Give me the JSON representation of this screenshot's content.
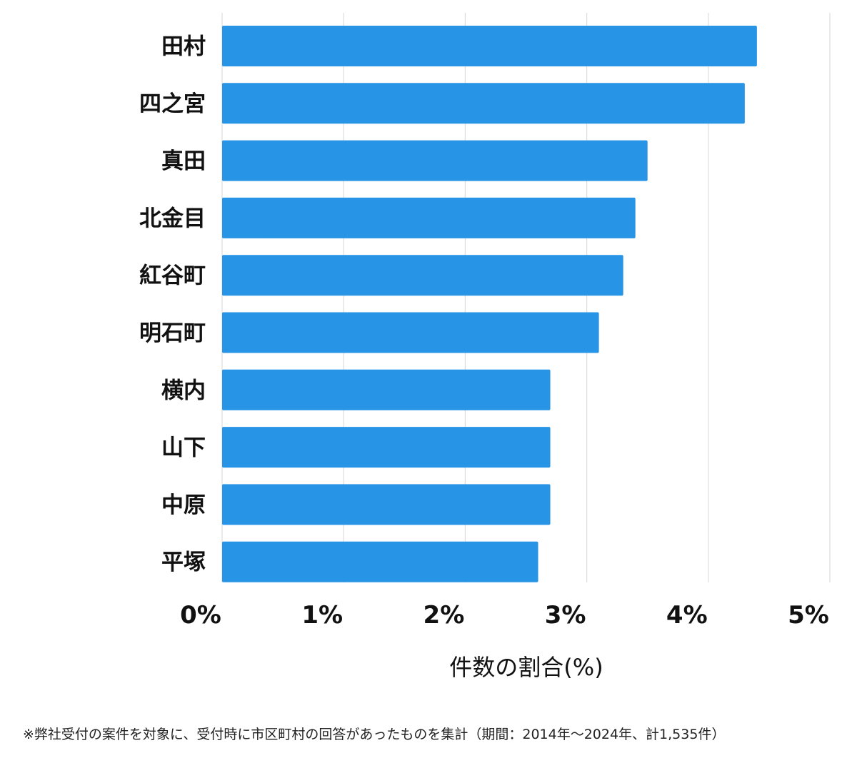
{
  "chart_data": {
    "type": "bar",
    "orientation": "horizontal",
    "categories": [
      "田村",
      "四之宮",
      "真田",
      "北金目",
      "紅谷町",
      "明石町",
      "横内",
      "山下",
      "中原",
      "平塚"
    ],
    "values": [
      4.4,
      4.3,
      3.5,
      3.4,
      3.3,
      3.1,
      2.7,
      2.7,
      2.7,
      2.6
    ],
    "xlabel": "件数の割合(%)",
    "ylabel": "",
    "xlim": [
      0,
      5
    ],
    "ticks": [
      "0%",
      "1%",
      "2%",
      "3%",
      "4%",
      "5%"
    ],
    "grid": true,
    "colors": {
      "bar": "#2794e6",
      "grid": "#dddddd"
    }
  },
  "footnote": "※弊社受付の案件を対象に、受付時に市区町村の回答があったものを集計（期間：2014年～2024年、計1,535件）"
}
